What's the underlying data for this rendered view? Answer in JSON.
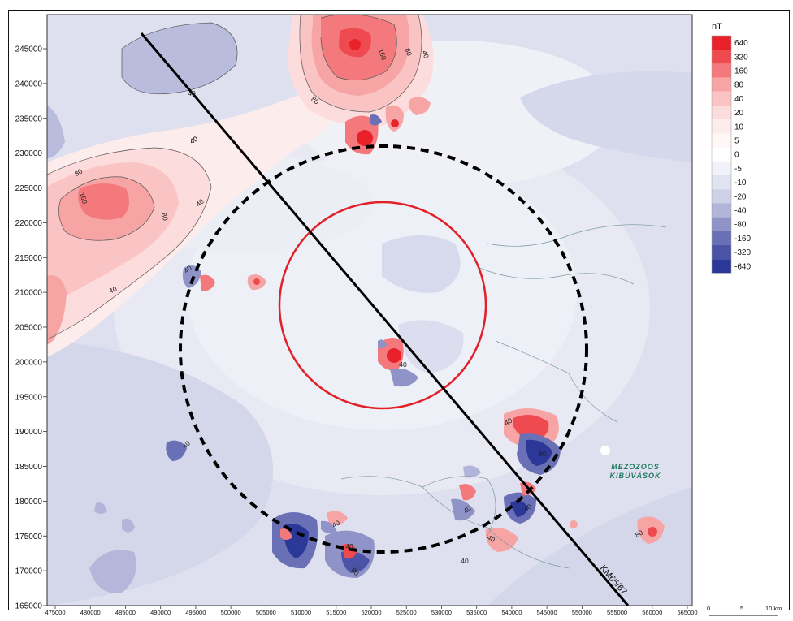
{
  "legend": {
    "unit": "nT",
    "classes": [
      {
        "label": "640",
        "color": "#e8212b"
      },
      {
        "label": "320",
        "color": "#ee4a4f"
      },
      {
        "label": "160",
        "color": "#f3797c"
      },
      {
        "label": "80",
        "color": "#f7a4a5"
      },
      {
        "label": "40",
        "color": "#fac4c4"
      },
      {
        "label": "20",
        "color": "#fcdcdc"
      },
      {
        "label": "10",
        "color": "#fdecec"
      },
      {
        "label": "5",
        "color": "#fff6f6"
      },
      {
        "label": "0",
        "color": "#ffffff"
      },
      {
        "label": "-5",
        "color": "#f1f1fa"
      },
      {
        "label": "-10",
        "color": "#e2e3f1"
      },
      {
        "label": "-20",
        "color": "#cfd1e8"
      },
      {
        "label": "-40",
        "color": "#b2b5d9"
      },
      {
        "label": "-80",
        "color": "#8f93c8"
      },
      {
        "label": "-160",
        "color": "#6a70b6"
      },
      {
        "label": "-320",
        "color": "#4b53a7"
      },
      {
        "label": "-640",
        "color": "#2c3898"
      }
    ]
  },
  "axes": {
    "y_ticks": [
      "245000",
      "240000",
      "235000",
      "230000",
      "225000",
      "220000",
      "215000",
      "210000",
      "205000",
      "200000",
      "195000",
      "190000",
      "185000",
      "180000",
      "175000",
      "170000",
      "165000"
    ],
    "x_ticks": [
      "475000",
      "480000",
      "485000",
      "490000",
      "495000",
      "500000",
      "505000",
      "510000",
      "515000",
      "520000",
      "525000",
      "530000",
      "535000",
      "540000",
      "545000",
      "550000",
      "555000",
      "560000",
      "565000"
    ]
  },
  "profile_label": "KM65/67",
  "area_label": {
    "line1": "MEZOZOOS",
    "line2": "KIBÚVÁSOK"
  },
  "contour_labels": [
    {
      "id": "c1",
      "text": "40"
    },
    {
      "id": "c2",
      "text": "40"
    },
    {
      "id": "c3",
      "text": "40"
    },
    {
      "id": "c4",
      "text": "80"
    },
    {
      "id": "c5",
      "text": "160"
    },
    {
      "id": "c6",
      "text": "80"
    },
    {
      "id": "c7",
      "text": "40"
    },
    {
      "id": "c8",
      "text": "40"
    },
    {
      "id": "c9",
      "text": "80"
    },
    {
      "id": "c10",
      "text": "160"
    },
    {
      "id": "c11",
      "text": "80"
    },
    {
      "id": "c12",
      "text": "40"
    },
    {
      "id": "c13",
      "text": "40"
    },
    {
      "id": "c14",
      "text": "40"
    },
    {
      "id": "c15",
      "text": "40"
    },
    {
      "id": "c16",
      "text": "40"
    },
    {
      "id": "c17",
      "text": "80"
    },
    {
      "id": "c18",
      "text": "40"
    },
    {
      "id": "c19",
      "text": "40"
    },
    {
      "id": "c20",
      "text": "40"
    },
    {
      "id": "c21",
      "text": "40"
    },
    {
      "id": "c22",
      "text": "80"
    },
    {
      "id": "c23",
      "text": "40"
    },
    {
      "id": "c24",
      "text": "40"
    },
    {
      "id": "c25",
      "text": "80"
    }
  ],
  "scale_bar": {
    "labels": [
      "0",
      "5",
      "10 km"
    ]
  }
}
